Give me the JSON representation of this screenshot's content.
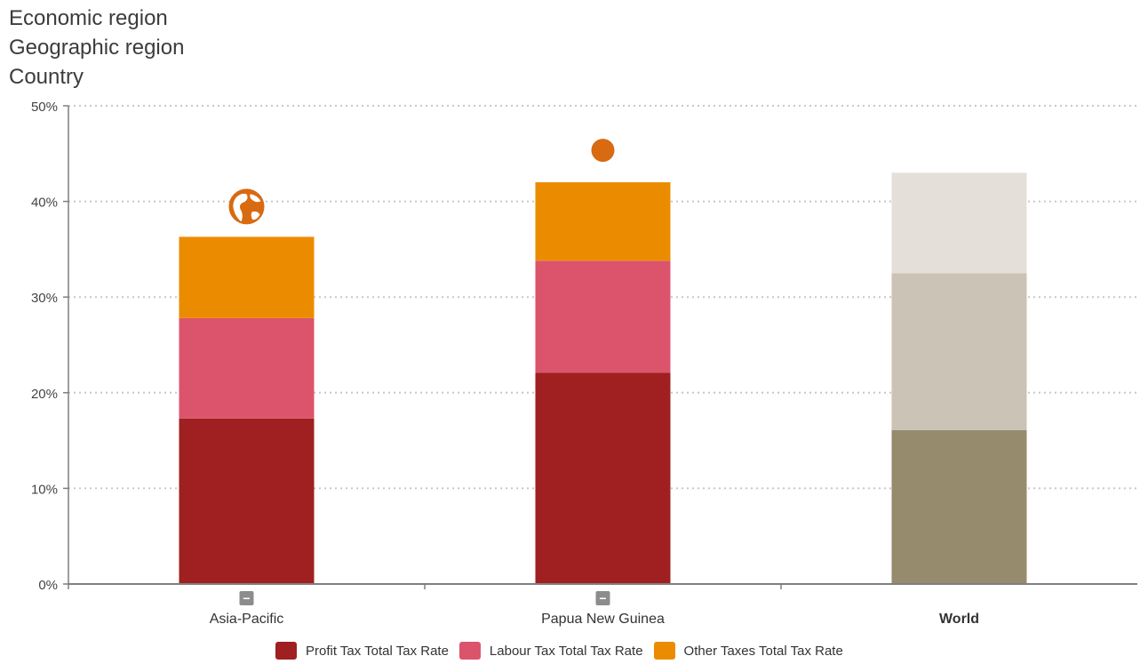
{
  "header": {
    "lines": [
      "Economic region",
      "Geographic region",
      "Country"
    ]
  },
  "colors": {
    "profit": "#a01f20",
    "labour": "#dc546b",
    "other": "#eb8c00",
    "world_profit": "#968b6d",
    "world_labour": "#cbc3b5",
    "world_other": "#e4e0d9",
    "icon": "#d86a12",
    "axis": "#7f7f7f",
    "grid": "#c8c8c8"
  },
  "chart_data": {
    "type": "bar",
    "stacked": true,
    "categories": [
      "Asia-Pacific",
      "Papua New Guinea",
      "World"
    ],
    "category_emphasis": [
      false,
      false,
      true
    ],
    "category_markers": [
      "globe-icon",
      "dot-icon",
      null
    ],
    "category_collapse_buttons": [
      true,
      true,
      false
    ],
    "collapse_symbol": "−",
    "series": [
      {
        "name": "Profit Tax Total Tax Rate",
        "values": [
          17.3,
          22.1,
          16.1
        ]
      },
      {
        "name": "Labour Tax Total Tax Rate",
        "values": [
          10.5,
          11.7,
          16.4
        ]
      },
      {
        "name": "Other Taxes Total Tax Rate",
        "values": [
          8.5,
          8.2,
          10.5
        ]
      }
    ],
    "ylim": [
      0,
      50
    ],
    "yticks": [
      0,
      10,
      20,
      30,
      40,
      50
    ],
    "ytick_labels": [
      "0%",
      "10%",
      "20%",
      "30%",
      "40%",
      "50%"
    ],
    "grid": true,
    "legend_position": "bottom",
    "xlabel": "",
    "ylabel": ""
  }
}
